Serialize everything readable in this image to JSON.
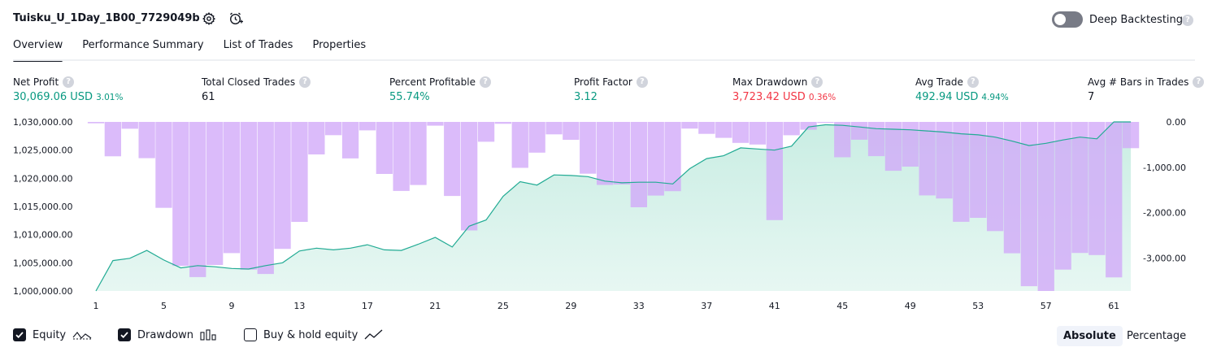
{
  "header": {
    "title": "Tuisku_U_1Day_1B00_7729049b",
    "deep_backtesting_label": "Deep Backtesting",
    "deep_backtesting_on": false,
    "help_glyph": "?"
  },
  "tabs": [
    {
      "label": "Overview",
      "active": true
    },
    {
      "label": "Performance Summary",
      "active": false
    },
    {
      "label": "List of Trades",
      "active": false
    },
    {
      "label": "Properties",
      "active": false
    }
  ],
  "metrics": [
    {
      "label": "Net Profit",
      "value": "30,069.06 USD",
      "pct": "3.01%",
      "color": "green"
    },
    {
      "label": "Total Closed Trades",
      "value": "61",
      "pct": "",
      "color": "dark"
    },
    {
      "label": "Percent Profitable",
      "value": "55.74%",
      "pct": "",
      "color": "green"
    },
    {
      "label": "Profit Factor",
      "value": "3.12",
      "pct": "",
      "color": "green"
    },
    {
      "label": "Max Drawdown",
      "value": "3,723.42 USD",
      "pct": "0.36%",
      "color": "red"
    },
    {
      "label": "Avg Trade",
      "value": "492.94 USD",
      "pct": "4.94%",
      "color": "green"
    },
    {
      "label": "Avg # Bars in Trades",
      "value": "7",
      "pct": "",
      "color": "dark"
    }
  ],
  "colors": {
    "equity_line": "#22ab94",
    "equity_fill": "#c9ede3",
    "drawdown_bar": "#d1a8f8",
    "green": "#089981",
    "red": "#f23645"
  },
  "chart_data": {
    "type": "area",
    "x_label_ticks": [
      "1",
      "5",
      "9",
      "13",
      "17",
      "21",
      "25",
      "29",
      "33",
      "37",
      "41",
      "45",
      "49",
      "53",
      "57",
      "61"
    ],
    "equity_axis": {
      "ticks": [
        "1,030,000.00",
        "1,025,000.00",
        "1,020,000.00",
        "1,015,000.00",
        "1,010,000.00",
        "1,005,000.00",
        "1,000,000.00"
      ],
      "range": [
        1000000,
        1030000
      ]
    },
    "drawdown_axis": {
      "ticks": [
        "0.00",
        "-1,000.00",
        "-2,000.00",
        "-3,000.00"
      ],
      "range": [
        -3723.42,
        0
      ]
    },
    "series": [
      {
        "name": "Equity",
        "kind": "line-area",
        "x": [
          1,
          2,
          3,
          4,
          5,
          6,
          7,
          8,
          9,
          10,
          11,
          12,
          13,
          14,
          15,
          16,
          17,
          18,
          19,
          20,
          21,
          22,
          23,
          24,
          25,
          26,
          27,
          28,
          29,
          30,
          31,
          32,
          33,
          34,
          35,
          36,
          37,
          38,
          39,
          40,
          41,
          42,
          43,
          44,
          45,
          46,
          47,
          48,
          49,
          50,
          51,
          52,
          53,
          54,
          55,
          56,
          57,
          58,
          59,
          60,
          61,
          62
        ],
        "values": [
          1000000,
          1005400,
          1005800,
          1007200,
          1005500,
          1004100,
          1004500,
          1004300,
          1004000,
          1003900,
          1004500,
          1005000,
          1007100,
          1007600,
          1007300,
          1007600,
          1008200,
          1007300,
          1007200,
          1008300,
          1009500,
          1007800,
          1011500,
          1012600,
          1016800,
          1019400,
          1018800,
          1020600,
          1020500,
          1020300,
          1019500,
          1019200,
          1019300,
          1019300,
          1019000,
          1021700,
          1023500,
          1024000,
          1025400,
          1025200,
          1025000,
          1025700,
          1029100,
          1029500,
          1029400,
          1029100,
          1028800,
          1028700,
          1028600,
          1028400,
          1028200,
          1027900,
          1027700,
          1027300,
          1026600,
          1025800,
          1026200,
          1026800,
          1027300,
          1027000,
          1030000,
          1030000
        ]
      },
      {
        "name": "Drawdown",
        "kind": "bar",
        "x": [
          1,
          2,
          3,
          4,
          5,
          6,
          7,
          8,
          9,
          10,
          11,
          12,
          13,
          14,
          15,
          16,
          17,
          18,
          19,
          20,
          21,
          22,
          23,
          24,
          25,
          26,
          27,
          28,
          29,
          30,
          31,
          32,
          33,
          34,
          35,
          36,
          37,
          38,
          39,
          40,
          41,
          42,
          43,
          44,
          45,
          46,
          47,
          48,
          49,
          50,
          51,
          52,
          53,
          54,
          55,
          56,
          57,
          58,
          59,
          60,
          61,
          62
        ],
        "values": [
          -30,
          -758,
          -151,
          -798,
          -1892,
          -3171,
          -3418,
          -3150,
          -2890,
          -3254,
          -3349,
          -2796,
          -2201,
          -716,
          -292,
          -803,
          -186,
          -1145,
          -1520,
          -1390,
          -83,
          -1631,
          -2390,
          -436,
          -41,
          -1011,
          -677,
          -273,
          -394,
          -1141,
          -1388,
          -1379,
          -1879,
          -1622,
          -1526,
          -147,
          -264,
          -350,
          -461,
          -497,
          -2162,
          -294,
          -172,
          -21,
          -779,
          -392,
          -754,
          -1075,
          -985,
          -1619,
          -1687,
          -2200,
          -2112,
          -2404,
          -2892,
          -3618,
          -3723,
          -3253,
          -2885,
          -2932,
          -3425,
          -579
        ]
      }
    ]
  },
  "legend": [
    {
      "label": "Equity",
      "checked": true,
      "icon": "equity-line-icon"
    },
    {
      "label": "Drawdown",
      "checked": true,
      "icon": "drawdown-bars-icon"
    },
    {
      "label": "Buy & hold equity",
      "checked": false,
      "icon": "buy-hold-line-icon"
    }
  ],
  "modes": [
    {
      "label": "Absolute",
      "active": true
    },
    {
      "label": "Percentage",
      "active": false
    }
  ]
}
